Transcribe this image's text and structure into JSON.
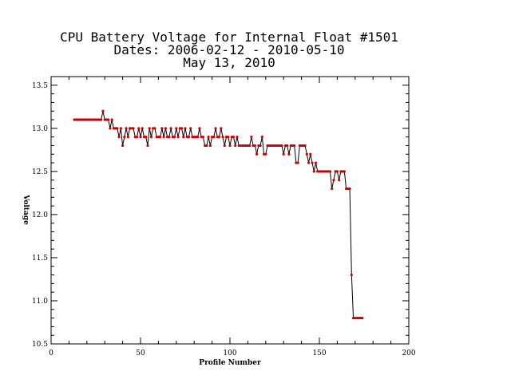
{
  "chart_data": {
    "type": "line",
    "title_lines": [
      "CPU Battery Voltage for Internal Float #1501",
      "Dates:  2006-02-12 -  2010-05-10",
      "May 13, 2010"
    ],
    "xlabel": "Profile Number",
    "ylabel": "Voltage",
    "xlim": [
      0,
      200
    ],
    "ylim": [
      10.5,
      13.6
    ],
    "xticks": [
      0,
      50,
      100,
      150,
      200
    ],
    "xtick_labels": [
      "0",
      "50",
      "100",
      "150",
      "200"
    ],
    "yticks": [
      10.5,
      11.0,
      11.5,
      12.0,
      12.5,
      13.0,
      13.5
    ],
    "ytick_labels": [
      "10.5",
      "11.0",
      "11.5",
      "12.0",
      "12.5",
      "13.0",
      "13.5"
    ],
    "line_color": "#000000",
    "marker_color": "#cc0000",
    "series": [
      {
        "x": [
          13,
          14,
          15,
          16,
          17,
          18,
          19,
          20,
          21,
          22,
          23,
          24,
          25,
          26,
          27,
          28,
          29,
          30,
          31,
          32,
          33,
          34,
          35,
          36,
          37,
          38,
          39,
          40,
          41,
          42,
          43,
          44,
          45,
          46,
          47,
          48,
          49,
          50,
          51,
          52,
          53,
          54,
          55,
          56,
          57,
          58,
          59,
          60,
          61,
          62,
          63,
          64,
          65,
          66,
          67,
          68,
          69,
          70,
          71,
          72,
          73,
          74,
          75,
          76,
          77,
          78,
          79,
          80,
          81,
          82,
          83,
          84,
          85,
          86,
          87,
          88,
          89,
          90,
          91,
          92,
          93,
          94,
          95,
          96,
          97,
          98,
          99,
          100,
          101,
          102,
          103,
          104,
          105,
          106,
          107,
          108,
          109,
          110,
          111,
          112,
          113,
          114,
          115,
          116,
          117,
          118,
          119,
          120,
          121,
          122,
          123,
          124,
          125,
          126,
          127,
          128,
          129,
          130,
          131,
          132,
          133,
          134,
          135,
          136,
          137,
          138,
          139,
          140,
          141,
          142,
          143,
          144,
          145,
          146,
          147,
          148,
          149,
          150,
          151,
          152,
          153,
          154,
          155,
          156,
          157,
          158,
          159,
          160,
          161,
          162,
          163,
          164,
          165,
          166,
          167,
          168,
          169,
          170,
          171,
          172,
          173,
          174
        ],
        "y": [
          13.1,
          13.1,
          13.1,
          13.1,
          13.1,
          13.1,
          13.1,
          13.1,
          13.1,
          13.1,
          13.1,
          13.1,
          13.1,
          13.1,
          13.1,
          13.1,
          13.2,
          13.1,
          13.1,
          13.1,
          13.0,
          13.1,
          13.0,
          13.0,
          13.0,
          12.9,
          13.0,
          12.8,
          12.9,
          13.0,
          12.9,
          13.0,
          13.0,
          13.0,
          12.9,
          12.9,
          13.0,
          12.9,
          13.0,
          12.9,
          12.9,
          12.8,
          13.0,
          12.9,
          13.0,
          13.0,
          12.9,
          12.9,
          12.9,
          13.0,
          12.9,
          13.0,
          12.9,
          12.9,
          13.0,
          12.9,
          12.9,
          13.0,
          12.9,
          13.0,
          13.0,
          12.9,
          13.0,
          12.9,
          12.9,
          13.0,
          12.9,
          12.9,
          12.9,
          12.9,
          13.0,
          12.9,
          12.9,
          12.8,
          12.8,
          12.9,
          12.8,
          12.9,
          12.9,
          13.0,
          12.9,
          12.9,
          13.0,
          12.9,
          12.8,
          12.9,
          12.9,
          12.8,
          12.9,
          12.9,
          12.8,
          12.9,
          12.8,
          12.8,
          12.8,
          12.8,
          12.8,
          12.8,
          12.8,
          12.9,
          12.8,
          12.8,
          12.7,
          12.8,
          12.8,
          12.9,
          12.7,
          12.7,
          12.8,
          12.8,
          12.8,
          12.8,
          12.8,
          12.8,
          12.8,
          12.8,
          12.8,
          12.7,
          12.8,
          12.8,
          12.7,
          12.8,
          12.8,
          12.8,
          12.6,
          12.6,
          12.8,
          12.8,
          12.8,
          12.8,
          12.7,
          12.6,
          12.7,
          12.6,
          12.5,
          12.6,
          12.5,
          12.5,
          12.5,
          12.5,
          12.5,
          12.5,
          12.5,
          12.5,
          12.3,
          12.4,
          12.5,
          12.5,
          12.4,
          12.5,
          12.5,
          12.5,
          12.3,
          12.3,
          12.3,
          11.3,
          10.8,
          10.8,
          10.8,
          10.8,
          10.8,
          10.8
        ]
      }
    ]
  }
}
